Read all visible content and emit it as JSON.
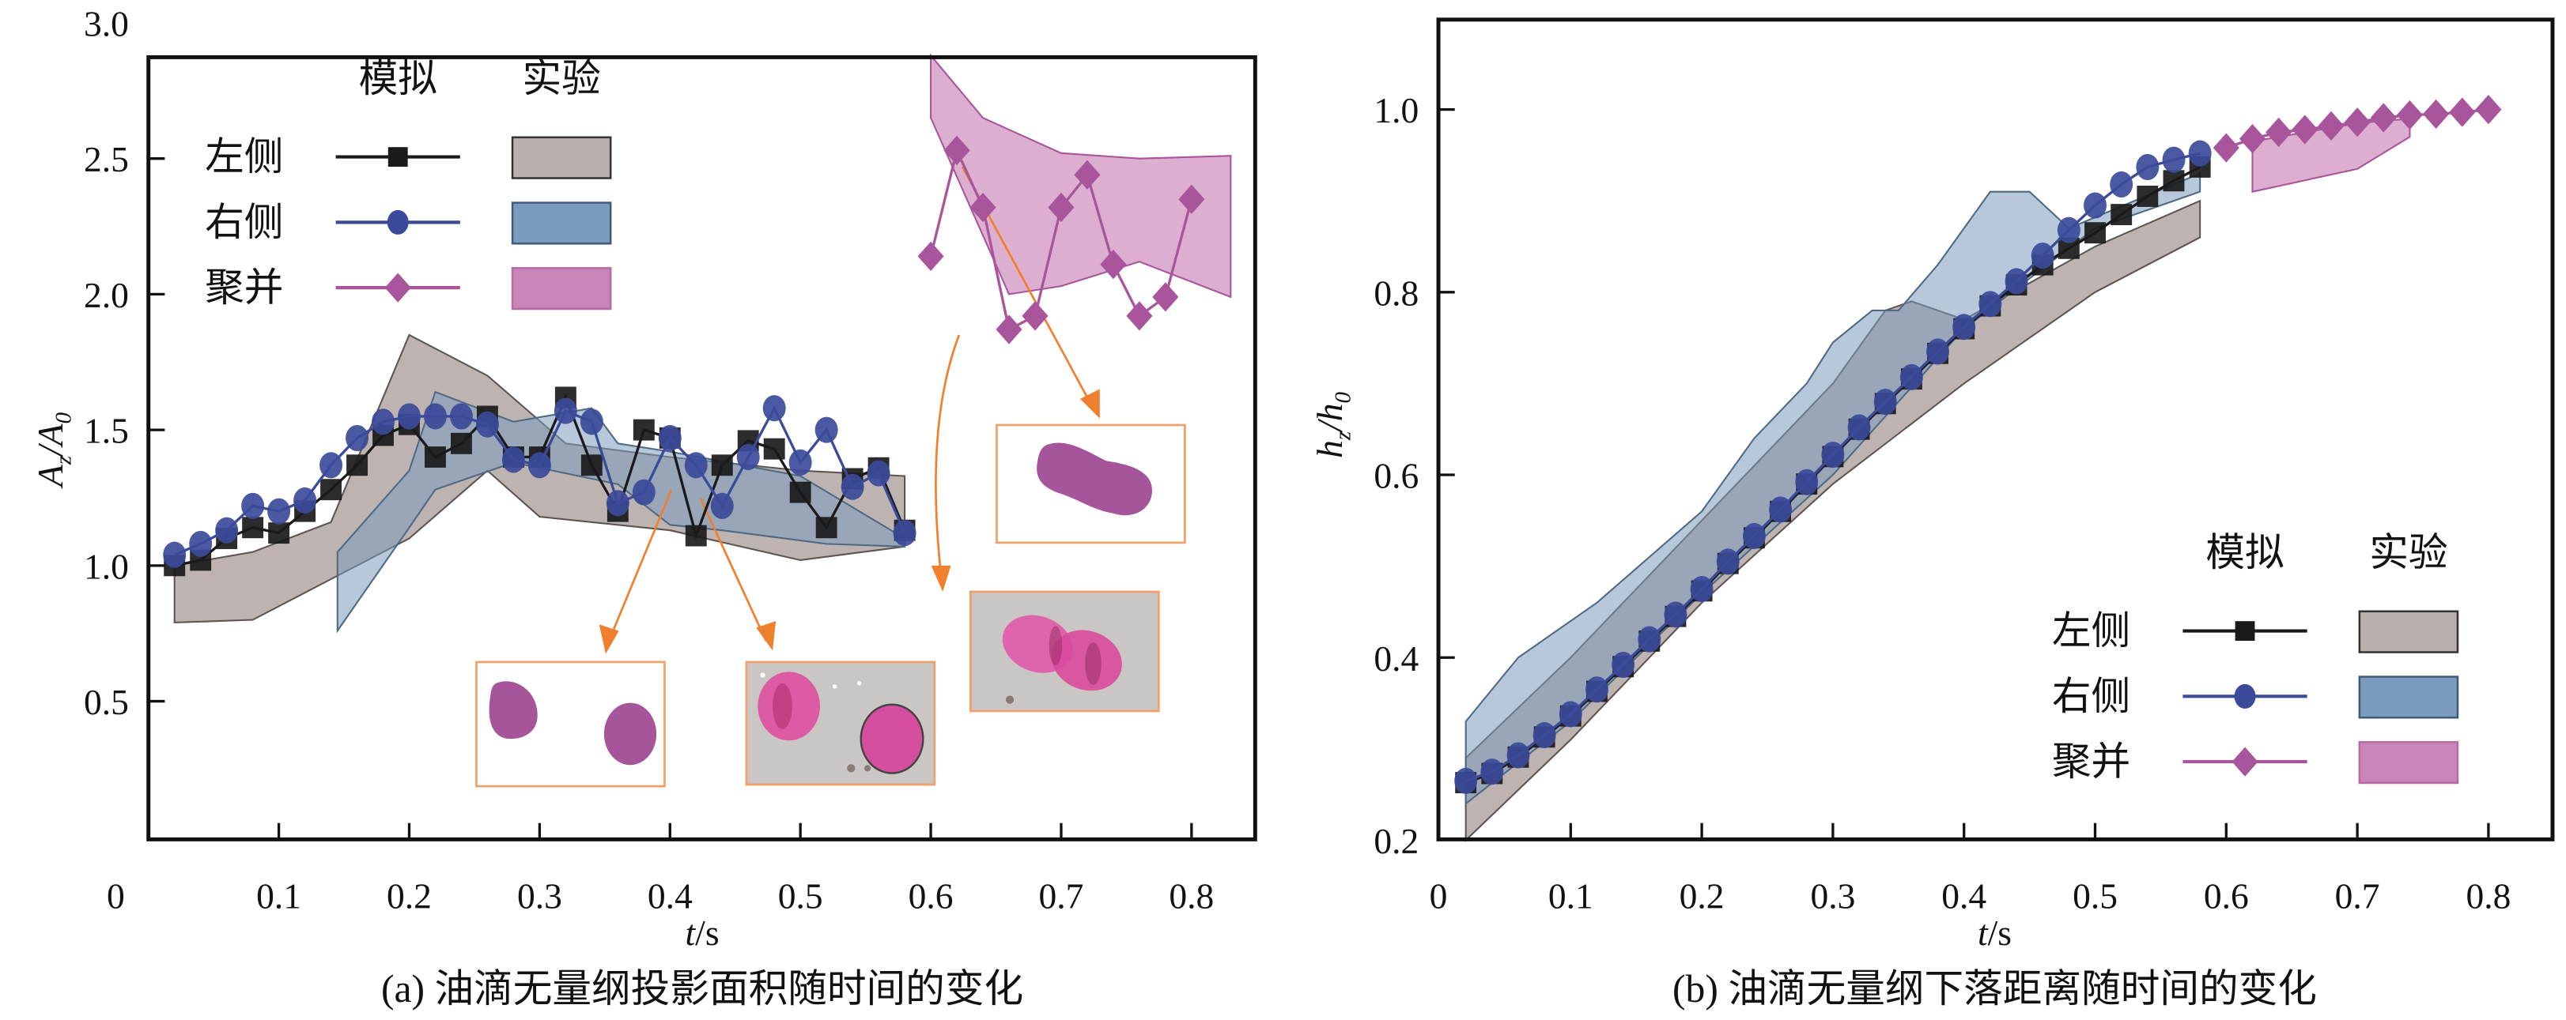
{
  "figure": {
    "captions": {
      "a": "(a) 油滴无量纲投影面积随时间的变化",
      "b": "(b) 油滴无量纲下落距离随时间的变化"
    },
    "legend": {
      "header_sim": "模拟",
      "header_exp": "实验",
      "rows": [
        {
          "label": "左侧",
          "color": "#1a1a1a",
          "band_color": "#b9b0ae",
          "marker": "square"
        },
        {
          "label": "右侧",
          "color": "#3c4a9a",
          "band_color": "#7a9bbb",
          "marker": "circle"
        },
        {
          "label": "聚并",
          "color": "#a9559b",
          "band_color": "#c984b8",
          "marker": "diamond"
        }
      ]
    },
    "colors": {
      "arrow": "#f07f2e",
      "inset_border": "#f0a068",
      "droplet": "#a6559a"
    }
  },
  "chart_data": [
    {
      "type": "line",
      "id": "a",
      "title": "(a) 油滴无量纲投影面积随时间的变化",
      "xlabel": "t/s",
      "ylabel": "A_z/A_0",
      "xlim": [
        0,
        0.85
      ],
      "ylim": [
        0,
        3.0
      ],
      "xticks": [
        0.1,
        0.2,
        0.3,
        0.4,
        0.5,
        0.6,
        0.7,
        0.8
      ],
      "xtick_labels": [
        "0.1",
        "0.2",
        "0.3",
        "0.4",
        "0.5",
        "0.6",
        "0.7",
        "0.8"
      ],
      "yticks": [
        0.5,
        1.0,
        1.5,
        2.0,
        2.5,
        3.0
      ],
      "ytick_labels": [
        "0.5",
        "1.0",
        "1.5",
        "2.0",
        "2.5",
        "3.0"
      ],
      "origin_label": "0",
      "legend_position": "top-left",
      "series": [
        {
          "name": "左侧 模拟",
          "x": [
            0.02,
            0.04,
            0.06,
            0.08,
            0.1,
            0.12,
            0.14,
            0.16,
            0.18,
            0.2,
            0.22,
            0.24,
            0.26,
            0.28,
            0.3,
            0.32,
            0.34,
            0.36,
            0.38,
            0.4,
            0.42,
            0.44,
            0.46,
            0.48,
            0.5,
            0.52,
            0.54,
            0.56,
            0.58
          ],
          "y": [
            1.0,
            1.02,
            1.1,
            1.14,
            1.12,
            1.2,
            1.28,
            1.37,
            1.48,
            1.52,
            1.4,
            1.45,
            1.55,
            1.4,
            1.4,
            1.62,
            1.37,
            1.2,
            1.5,
            1.47,
            1.11,
            1.37,
            1.46,
            1.43,
            1.27,
            1.14,
            1.32,
            1.36,
            1.13
          ]
        },
        {
          "name": "右侧 模拟",
          "x": [
            0.02,
            0.04,
            0.06,
            0.08,
            0.1,
            0.12,
            0.14,
            0.16,
            0.18,
            0.2,
            0.22,
            0.24,
            0.26,
            0.28,
            0.3,
            0.32,
            0.34,
            0.36,
            0.38,
            0.4,
            0.42,
            0.44,
            0.46,
            0.48,
            0.5,
            0.52,
            0.54,
            0.56,
            0.58
          ],
          "y": [
            1.04,
            1.08,
            1.13,
            1.22,
            1.2,
            1.24,
            1.37,
            1.47,
            1.53,
            1.55,
            1.55,
            1.55,
            1.52,
            1.39,
            1.37,
            1.57,
            1.53,
            1.23,
            1.27,
            1.47,
            1.37,
            1.22,
            1.4,
            1.58,
            1.38,
            1.5,
            1.29,
            1.34,
            1.12
          ]
        },
        {
          "name": "聚并 模拟",
          "x": [
            0.6,
            0.62,
            0.64,
            0.66,
            0.68,
            0.7,
            0.72,
            0.74,
            0.76,
            0.78,
            0.8
          ],
          "y": [
            2.14,
            2.53,
            2.32,
            1.87,
            1.92,
            2.32,
            2.44,
            2.11,
            1.92,
            1.99,
            2.35
          ]
        }
      ],
      "bands": [
        {
          "name": "左侧 实验",
          "upper": [
            [
              0.02,
              1.0
            ],
            [
              0.08,
              1.05
            ],
            [
              0.14,
              1.16
            ],
            [
              0.2,
              1.85
            ],
            [
              0.26,
              1.7
            ],
            [
              0.32,
              1.45
            ],
            [
              0.4,
              1.4
            ],
            [
              0.5,
              1.35
            ],
            [
              0.58,
              1.33
            ]
          ],
          "lower": [
            [
              0.02,
              0.79
            ],
            [
              0.08,
              0.8
            ],
            [
              0.14,
              0.95
            ],
            [
              0.2,
              1.1
            ],
            [
              0.26,
              1.35
            ],
            [
              0.3,
              1.18
            ],
            [
              0.4,
              1.13
            ],
            [
              0.5,
              1.02
            ],
            [
              0.58,
              1.07
            ]
          ]
        },
        {
          "name": "右侧 实验",
          "upper": [
            [
              0.145,
              1.05
            ],
            [
              0.2,
              1.35
            ],
            [
              0.22,
              1.64
            ],
            [
              0.28,
              1.53
            ],
            [
              0.34,
              1.58
            ],
            [
              0.36,
              1.45
            ],
            [
              0.4,
              1.42
            ],
            [
              0.5,
              1.33
            ],
            [
              0.58,
              1.1
            ]
          ],
          "lower": [
            [
              0.145,
              0.76
            ],
            [
              0.2,
              1.14
            ],
            [
              0.22,
              1.28
            ],
            [
              0.28,
              1.38
            ],
            [
              0.36,
              1.3
            ],
            [
              0.4,
              1.15
            ],
            [
              0.44,
              1.13
            ],
            [
              0.52,
              1.08
            ],
            [
              0.58,
              1.07
            ]
          ]
        },
        {
          "name": "聚并 实验",
          "upper": [
            [
              0.6,
              2.88
            ],
            [
              0.64,
              2.65
            ],
            [
              0.7,
              2.52
            ],
            [
              0.76,
              2.5
            ],
            [
              0.83,
              2.51
            ]
          ],
          "lower": [
            [
              0.6,
              2.65
            ],
            [
              0.66,
              2.0
            ],
            [
              0.7,
              2.03
            ],
            [
              0.76,
              2.12
            ],
            [
              0.83,
              1.99
            ]
          ]
        }
      ],
      "annotations": [
        {
          "type": "inset",
          "content": "simulated droplets (two separate)",
          "points_to_t": 0.42
        },
        {
          "type": "inset",
          "content": "experimental photo (two separate droplets)",
          "points_to_t": 0.44
        },
        {
          "type": "inset",
          "content": "experimental photo (coalescing)",
          "points_to_t": 0.62
        },
        {
          "type": "inset",
          "content": "simulated coalesced droplet",
          "points_to_t": 0.62
        }
      ]
    },
    {
      "type": "line",
      "id": "b",
      "title": "(b) 油滴无量纲下落距离随时间的变化",
      "xlabel": "t/s",
      "ylabel": "h_z/h_0",
      "xlim": [
        0,
        0.85
      ],
      "ylim": [
        0.2,
        1.1
      ],
      "xticks": [
        0.1,
        0.2,
        0.3,
        0.4,
        0.5,
        0.6,
        0.7,
        0.8
      ],
      "xtick_labels": [
        "0.1",
        "0.2",
        "0.3",
        "0.4",
        "0.5",
        "0.6",
        "0.7",
        "0.8"
      ],
      "yticks": [
        0.2,
        0.4,
        0.6,
        0.8,
        1.0
      ],
      "ytick_labels": [
        "0.2",
        "0.4",
        "0.6",
        "0.8",
        "1.0"
      ],
      "origin_label": "0",
      "legend_position": "bottom-right",
      "series": [
        {
          "name": "左侧 模拟",
          "x": [
            0.02,
            0.04,
            0.06,
            0.08,
            0.1,
            0.12,
            0.14,
            0.16,
            0.18,
            0.2,
            0.22,
            0.24,
            0.26,
            0.28,
            0.3,
            0.32,
            0.34,
            0.36,
            0.38,
            0.4,
            0.42,
            0.44,
            0.46,
            0.48,
            0.5,
            0.52,
            0.54,
            0.56,
            0.58
          ],
          "y": [
            0.263,
            0.273,
            0.291,
            0.313,
            0.336,
            0.363,
            0.39,
            0.418,
            0.445,
            0.473,
            0.503,
            0.531,
            0.56,
            0.59,
            0.62,
            0.65,
            0.678,
            0.705,
            0.733,
            0.76,
            0.785,
            0.808,
            0.83,
            0.848,
            0.865,
            0.885,
            0.905,
            0.922,
            0.937
          ]
        },
        {
          "name": "右侧 模拟",
          "x": [
            0.02,
            0.04,
            0.06,
            0.08,
            0.1,
            0.12,
            0.14,
            0.16,
            0.18,
            0.2,
            0.22,
            0.24,
            0.26,
            0.28,
            0.3,
            0.32,
            0.34,
            0.36,
            0.38,
            0.4,
            0.42,
            0.44,
            0.46,
            0.48,
            0.5,
            0.52,
            0.54,
            0.56,
            0.58
          ],
          "y": [
            0.265,
            0.275,
            0.293,
            0.315,
            0.338,
            0.365,
            0.392,
            0.42,
            0.447,
            0.475,
            0.505,
            0.533,
            0.562,
            0.592,
            0.622,
            0.652,
            0.68,
            0.707,
            0.735,
            0.762,
            0.787,
            0.812,
            0.84,
            0.868,
            0.895,
            0.918,
            0.937,
            0.945,
            0.952
          ]
        },
        {
          "name": "聚并 模拟",
          "x": [
            0.6,
            0.62,
            0.64,
            0.66,
            0.68,
            0.7,
            0.72,
            0.74,
            0.76,
            0.78,
            0.8
          ],
          "y": [
            0.958,
            0.968,
            0.975,
            0.978,
            0.982,
            0.986,
            0.991,
            0.994,
            0.995,
            0.997,
            1.0
          ]
        }
      ],
      "bands": [
        {
          "name": "左侧 实验",
          "upper": [
            [
              0.02,
              0.29
            ],
            [
              0.1,
              0.4
            ],
            [
              0.2,
              0.55
            ],
            [
              0.3,
              0.7
            ],
            [
              0.34,
              0.78
            ],
            [
              0.36,
              0.79
            ],
            [
              0.4,
              0.77
            ],
            [
              0.5,
              0.85
            ],
            [
              0.58,
              0.9
            ]
          ],
          "lower": [
            [
              0.02,
              0.2
            ],
            [
              0.1,
              0.31
            ],
            [
              0.2,
              0.46
            ],
            [
              0.3,
              0.59
            ],
            [
              0.4,
              0.7
            ],
            [
              0.5,
              0.8
            ],
            [
              0.58,
              0.86
            ]
          ]
        },
        {
          "name": "右侧 实验",
          "upper": [
            [
              0.02,
              0.33
            ],
            [
              0.06,
              0.4
            ],
            [
              0.12,
              0.46
            ],
            [
              0.2,
              0.56
            ],
            [
              0.24,
              0.64
            ],
            [
              0.28,
              0.7
            ],
            [
              0.3,
              0.745
            ],
            [
              0.33,
              0.78
            ],
            [
              0.35,
              0.78
            ],
            [
              0.38,
              0.83
            ],
            [
              0.42,
              0.91
            ],
            [
              0.45,
              0.91
            ],
            [
              0.48,
              0.87
            ],
            [
              0.58,
              0.93
            ]
          ],
          "lower": [
            [
              0.02,
              0.24
            ],
            [
              0.1,
              0.33
            ],
            [
              0.2,
              0.47
            ],
            [
              0.3,
              0.6
            ],
            [
              0.4,
              0.76
            ],
            [
              0.5,
              0.87
            ],
            [
              0.58,
              0.91
            ]
          ]
        },
        {
          "name": "聚并 实验",
          "upper": [
            [
              0.62,
              0.965
            ],
            [
              0.7,
              0.985
            ],
            [
              0.74,
              0.99
            ]
          ],
          "lower": [
            [
              0.62,
              0.91
            ],
            [
              0.7,
              0.935
            ],
            [
              0.74,
              0.97
            ]
          ]
        }
      ]
    }
  ]
}
